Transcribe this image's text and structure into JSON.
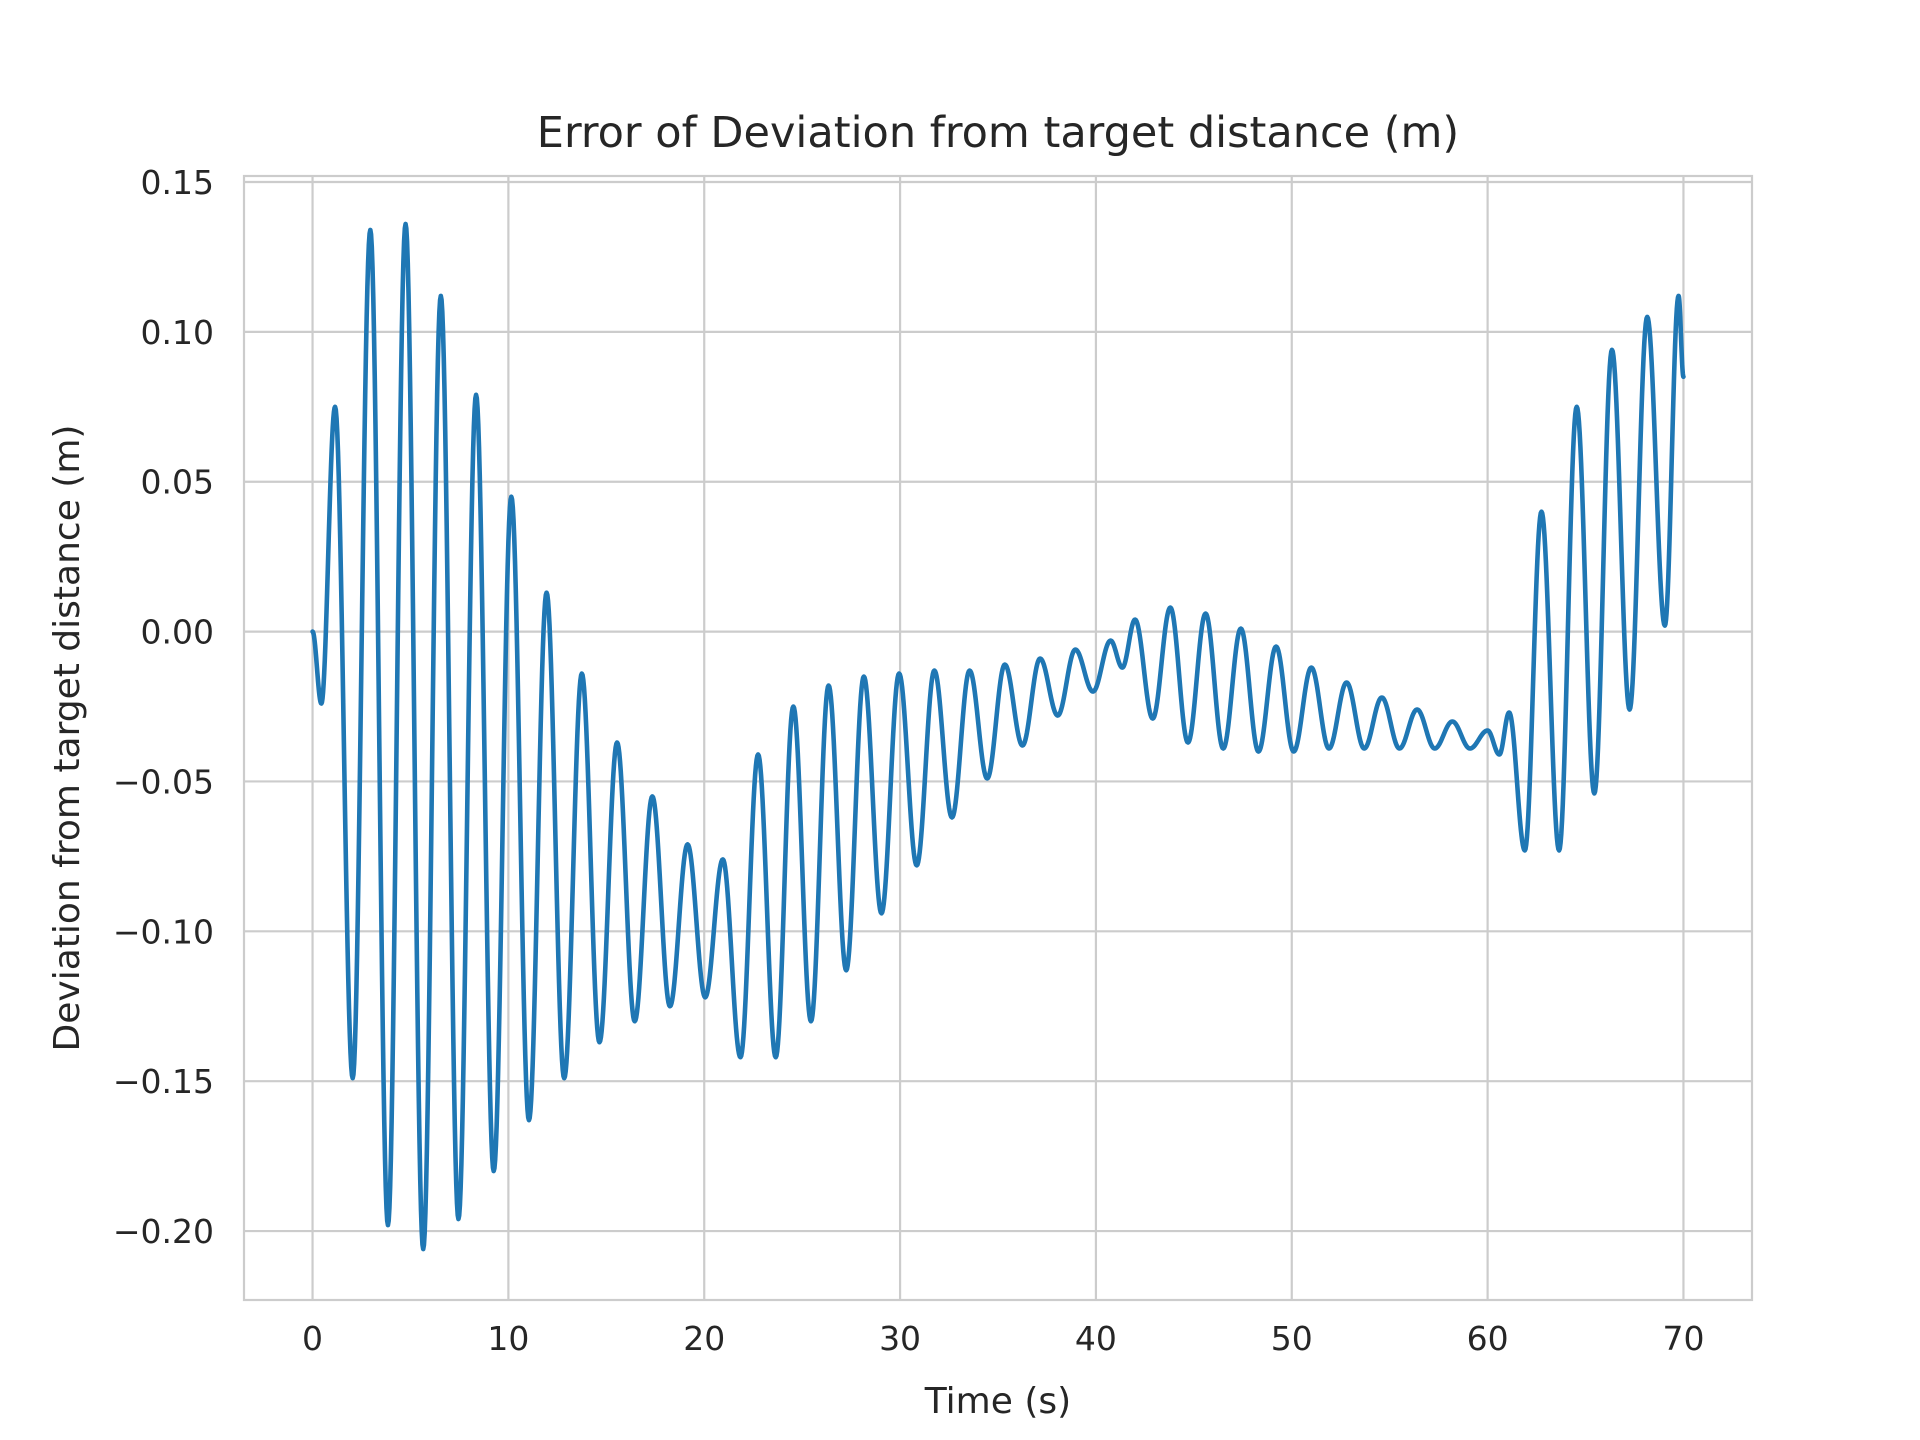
{
  "chart_data": {
    "type": "line",
    "title": "Error of Deviation from target distance (m)",
    "xlabel": "Time (s)",
    "ylabel": "Deviation from target distance (m)",
    "xlim": [
      -3.5,
      73.5
    ],
    "ylim": [
      -0.223,
      0.152
    ],
    "xticks": [
      0,
      10,
      20,
      30,
      40,
      50,
      60,
      70
    ],
    "yticks": [
      0.15,
      0.1,
      0.05,
      0.0,
      -0.05,
      -0.1,
      -0.15,
      -0.2
    ],
    "xtick_labels": [
      "0",
      "10",
      "20",
      "30",
      "40",
      "50",
      "60",
      "70"
    ],
    "ytick_labels": [
      "0.15",
      "0.10",
      "0.05",
      "0.00",
      "−0.05",
      "−0.10",
      "−0.15",
      "−0.20"
    ],
    "grid": true,
    "line_color": "#1f77b4",
    "series": [
      {
        "color": "#1f77b4",
        "points": [
          [
            0.0,
            0.0
          ],
          [
            0.45,
            -0.024
          ],
          [
            1.15,
            0.075
          ],
          [
            2.05,
            -0.149
          ],
          [
            2.95,
            0.134
          ],
          [
            3.85,
            -0.198
          ],
          [
            4.75,
            0.136
          ],
          [
            5.65,
            -0.206
          ],
          [
            6.55,
            0.112
          ],
          [
            7.45,
            -0.196
          ],
          [
            8.35,
            0.079
          ],
          [
            9.25,
            -0.18
          ],
          [
            10.15,
            0.045
          ],
          [
            11.05,
            -0.163
          ],
          [
            11.95,
            0.013
          ],
          [
            12.85,
            -0.149
          ],
          [
            13.75,
            -0.014
          ],
          [
            14.65,
            -0.137
          ],
          [
            15.55,
            -0.037
          ],
          [
            16.45,
            -0.13
          ],
          [
            17.35,
            -0.055
          ],
          [
            18.25,
            -0.125
          ],
          [
            19.15,
            -0.071
          ],
          [
            20.05,
            -0.122
          ],
          [
            20.95,
            -0.076
          ],
          [
            21.85,
            -0.142
          ],
          [
            22.75,
            -0.041
          ],
          [
            23.65,
            -0.142
          ],
          [
            24.55,
            -0.025
          ],
          [
            25.45,
            -0.13
          ],
          [
            26.35,
            -0.018
          ],
          [
            27.25,
            -0.113
          ],
          [
            28.15,
            -0.015
          ],
          [
            29.05,
            -0.094
          ],
          [
            29.95,
            -0.014
          ],
          [
            30.85,
            -0.078
          ],
          [
            31.75,
            -0.013
          ],
          [
            32.65,
            -0.062
          ],
          [
            33.55,
            -0.013
          ],
          [
            34.45,
            -0.049
          ],
          [
            35.35,
            -0.011
          ],
          [
            36.25,
            -0.038
          ],
          [
            37.15,
            -0.009
          ],
          [
            38.05,
            -0.028
          ],
          [
            38.95,
            -0.006
          ],
          [
            39.85,
            -0.02
          ],
          [
            40.75,
            -0.003
          ],
          [
            41.35,
            -0.012
          ],
          [
            42.0,
            0.004
          ],
          [
            42.9,
            -0.029
          ],
          [
            43.8,
            0.008
          ],
          [
            44.7,
            -0.037
          ],
          [
            45.6,
            0.006
          ],
          [
            46.5,
            -0.039
          ],
          [
            47.4,
            0.001
          ],
          [
            48.3,
            -0.04
          ],
          [
            49.2,
            -0.005
          ],
          [
            50.1,
            -0.04
          ],
          [
            51.0,
            -0.012
          ],
          [
            51.9,
            -0.039
          ],
          [
            52.8,
            -0.017
          ],
          [
            53.7,
            -0.039
          ],
          [
            54.6,
            -0.022
          ],
          [
            55.5,
            -0.039
          ],
          [
            56.4,
            -0.026
          ],
          [
            57.3,
            -0.039
          ],
          [
            58.2,
            -0.03
          ],
          [
            59.1,
            -0.039
          ],
          [
            60.0,
            -0.033
          ],
          [
            60.6,
            -0.041
          ],
          [
            61.1,
            -0.027
          ],
          [
            61.9,
            -0.073
          ],
          [
            62.75,
            0.04
          ],
          [
            63.65,
            -0.073
          ],
          [
            64.55,
            0.075
          ],
          [
            65.45,
            -0.054
          ],
          [
            66.35,
            0.094
          ],
          [
            67.25,
            -0.026
          ],
          [
            68.15,
            0.105
          ],
          [
            69.05,
            0.002
          ],
          [
            69.75,
            0.112
          ],
          [
            70.0,
            0.085
          ]
        ]
      }
    ]
  }
}
